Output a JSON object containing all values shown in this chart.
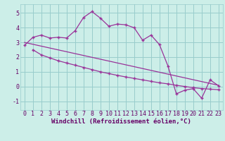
{
  "background_color": "#cceee8",
  "grid_color": "#99cccc",
  "line_color": "#993399",
  "marker_color": "#993399",
  "xlabel": "Windchill (Refroidissement éolien,°C)",
  "xlabel_fontsize": 6.5,
  "tick_fontsize": 6.0,
  "xlim": [
    -0.5,
    23.5
  ],
  "ylim": [
    -1.6,
    5.6
  ],
  "yticks": [
    -1,
    0,
    1,
    2,
    3,
    4,
    5
  ],
  "xticks": [
    0,
    1,
    2,
    3,
    4,
    5,
    6,
    7,
    8,
    9,
    10,
    11,
    12,
    13,
    14,
    15,
    16,
    17,
    18,
    19,
    20,
    21,
    22,
    23
  ],
  "series1_x": [
    0,
    1,
    2,
    3,
    4,
    5,
    6,
    7,
    8,
    9,
    10,
    11,
    12,
    13,
    14,
    15,
    16,
    17,
    18,
    19,
    20,
    21,
    22,
    23
  ],
  "series1_y": [
    2.8,
    3.35,
    3.5,
    3.3,
    3.35,
    3.3,
    3.8,
    4.7,
    5.1,
    4.65,
    4.1,
    4.25,
    4.2,
    4.0,
    3.15,
    3.5,
    2.85,
    1.4,
    -0.5,
    -0.25,
    -0.15,
    -0.8,
    0.45,
    0.05
  ],
  "series2_x": [
    1,
    2,
    3,
    4,
    5,
    6,
    7,
    8,
    9,
    10,
    11,
    12,
    13,
    14,
    15,
    16,
    17,
    18,
    19,
    20,
    21,
    22,
    23
  ],
  "series2_y": [
    2.5,
    2.15,
    1.95,
    1.75,
    1.6,
    1.45,
    1.3,
    1.15,
    1.0,
    0.88,
    0.76,
    0.65,
    0.55,
    0.45,
    0.35,
    0.25,
    0.18,
    0.08,
    0.0,
    -0.08,
    -0.14,
    -0.18,
    -0.22
  ],
  "series3_x": [
    0,
    23
  ],
  "series3_y": [
    3.0,
    0.08
  ]
}
